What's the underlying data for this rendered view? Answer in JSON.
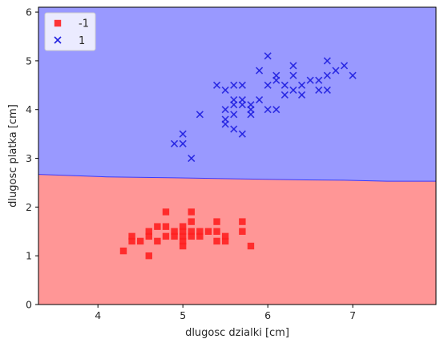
{
  "chart_data": {
    "type": "scatter",
    "xlabel": "dlugosc dzialki [cm]",
    "ylabel": "dlugosc platka [cm]",
    "xlim": [
      3.3,
      7.98
    ],
    "ylim": [
      0,
      6.1
    ],
    "x_ticks": [
      "4",
      "5",
      "6",
      "7"
    ],
    "y_ticks": [
      "0",
      "1",
      "2",
      "3",
      "4",
      "5",
      "6"
    ],
    "legend_position": "top-left",
    "grid": false,
    "decision_regions": {
      "boundary": [
        [
          3.3,
          2.67
        ],
        [
          3.6,
          2.65
        ],
        [
          4.1,
          2.62
        ],
        [
          4.9,
          2.6
        ],
        [
          5.6,
          2.58
        ],
        [
          6.3,
          2.56
        ],
        [
          6.9,
          2.55
        ],
        [
          7.4,
          2.53
        ],
        [
          7.98,
          2.53
        ]
      ],
      "below_class": "-1",
      "above_class": "1",
      "below_color": "#ff9696",
      "above_color": "#9999ff"
    },
    "series": [
      {
        "name": "-1",
        "marker": "square",
        "color": "#ff2020",
        "points": [
          [
            4.3,
            1.1
          ],
          [
            4.4,
            1.3
          ],
          [
            4.4,
            1.4
          ],
          [
            4.5,
            1.3
          ],
          [
            4.6,
            1.0
          ],
          [
            4.6,
            1.4
          ],
          [
            4.6,
            1.5
          ],
          [
            4.7,
            1.3
          ],
          [
            4.7,
            1.6
          ],
          [
            4.8,
            1.4
          ],
          [
            4.8,
            1.6
          ],
          [
            4.8,
            1.9
          ],
          [
            4.9,
            1.4
          ],
          [
            4.9,
            1.5
          ],
          [
            5.0,
            1.2
          ],
          [
            5.0,
            1.3
          ],
          [
            5.0,
            1.4
          ],
          [
            5.0,
            1.5
          ],
          [
            5.0,
            1.6
          ],
          [
            5.1,
            1.4
          ],
          [
            5.1,
            1.5
          ],
          [
            5.1,
            1.7
          ],
          [
            5.1,
            1.9
          ],
          [
            5.2,
            1.4
          ],
          [
            5.2,
            1.5
          ],
          [
            5.3,
            1.5
          ],
          [
            5.4,
            1.3
          ],
          [
            5.4,
            1.5
          ],
          [
            5.4,
            1.7
          ],
          [
            5.5,
            1.3
          ],
          [
            5.5,
            1.4
          ],
          [
            5.7,
            1.5
          ],
          [
            5.7,
            1.7
          ],
          [
            5.8,
            1.2
          ]
        ]
      },
      {
        "name": "1",
        "marker": "x",
        "color": "#2020e0",
        "points": [
          [
            4.9,
            3.3
          ],
          [
            5.0,
            3.3
          ],
          [
            5.0,
            3.5
          ],
          [
            5.1,
            3.0
          ],
          [
            5.2,
            3.9
          ],
          [
            5.4,
            4.5
          ],
          [
            5.5,
            3.7
          ],
          [
            5.5,
            3.8
          ],
          [
            5.5,
            4.0
          ],
          [
            5.5,
            4.4
          ],
          [
            5.6,
            3.6
          ],
          [
            5.6,
            3.9
          ],
          [
            5.6,
            4.1
          ],
          [
            5.6,
            4.2
          ],
          [
            5.6,
            4.5
          ],
          [
            5.7,
            3.5
          ],
          [
            5.7,
            4.1
          ],
          [
            5.7,
            4.2
          ],
          [
            5.7,
            4.5
          ],
          [
            5.8,
            3.9
          ],
          [
            5.8,
            4.0
          ],
          [
            5.8,
            4.1
          ],
          [
            5.9,
            4.2
          ],
          [
            5.9,
            4.8
          ],
          [
            6.0,
            4.0
          ],
          [
            6.0,
            4.5
          ],
          [
            6.0,
            5.1
          ],
          [
            6.1,
            4.0
          ],
          [
            6.1,
            4.6
          ],
          [
            6.1,
            4.7
          ],
          [
            6.2,
            4.3
          ],
          [
            6.2,
            4.5
          ],
          [
            6.3,
            4.4
          ],
          [
            6.3,
            4.7
          ],
          [
            6.3,
            4.9
          ],
          [
            6.4,
            4.3
          ],
          [
            6.4,
            4.5
          ],
          [
            6.5,
            4.6
          ],
          [
            6.6,
            4.4
          ],
          [
            6.6,
            4.6
          ],
          [
            6.7,
            4.4
          ],
          [
            6.7,
            4.7
          ],
          [
            6.7,
            5.0
          ],
          [
            6.8,
            4.8
          ],
          [
            6.9,
            4.9
          ],
          [
            7.0,
            4.7
          ]
        ]
      }
    ]
  }
}
